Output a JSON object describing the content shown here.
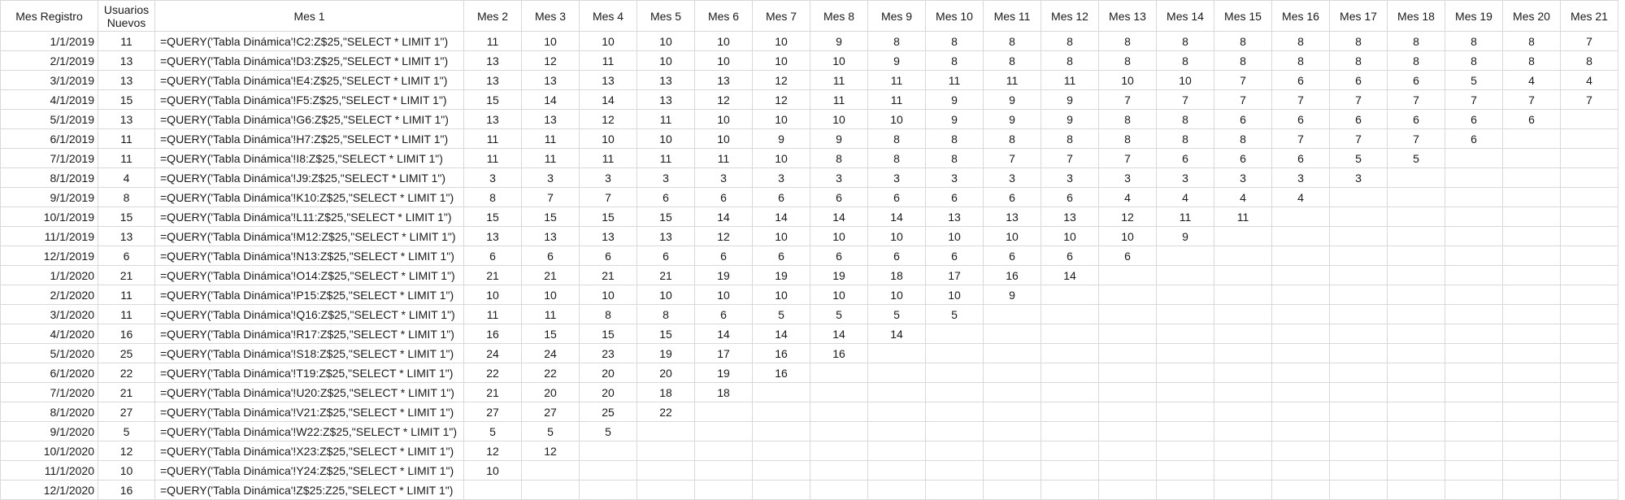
{
  "columns": [
    "Mes Registro",
    "Usuarios Nuevos",
    "Mes 1",
    "Mes 2",
    "Mes 3",
    "Mes 4",
    "Mes 5",
    "Mes 6",
    "Mes 7",
    "Mes 8",
    "Mes 9",
    "Mes 10",
    "Mes 11",
    "Mes 12",
    "Mes 13",
    "Mes 14",
    "Mes 15",
    "Mes 16",
    "Mes 17",
    "Mes 18",
    "Mes 19",
    "Mes 20",
    "Mes 21"
  ],
  "rows": [
    [
      "1/1/2019",
      "11",
      "=QUERY('Tabla Dinámica'!C2:Z$25,\"SELECT * LIMIT 1\")",
      "11",
      "10",
      "10",
      "10",
      "10",
      "10",
      "9",
      "8",
      "8",
      "8",
      "8",
      "8",
      "8",
      "8",
      "8",
      "8",
      "8",
      "8",
      "8",
      "7"
    ],
    [
      "2/1/2019",
      "13",
      "=QUERY('Tabla Dinámica'!D3:Z$25,\"SELECT * LIMIT 1\")",
      "13",
      "12",
      "11",
      "10",
      "10",
      "10",
      "10",
      "9",
      "8",
      "8",
      "8",
      "8",
      "8",
      "8",
      "8",
      "8",
      "8",
      "8",
      "8",
      "8"
    ],
    [
      "3/1/2019",
      "13",
      "=QUERY('Tabla Dinámica'!E4:Z$25,\"SELECT * LIMIT 1\")",
      "13",
      "13",
      "13",
      "13",
      "13",
      "12",
      "11",
      "11",
      "11",
      "11",
      "11",
      "10",
      "10",
      "7",
      "6",
      "6",
      "6",
      "5",
      "4",
      "4"
    ],
    [
      "4/1/2019",
      "15",
      "=QUERY('Tabla Dinámica'!F5:Z$25,\"SELECT * LIMIT 1\")",
      "15",
      "14",
      "14",
      "13",
      "12",
      "12",
      "11",
      "11",
      "9",
      "9",
      "9",
      "7",
      "7",
      "7",
      "7",
      "7",
      "7",
      "7",
      "7",
      "7"
    ],
    [
      "5/1/2019",
      "13",
      "=QUERY('Tabla Dinámica'!G6:Z$25,\"SELECT * LIMIT 1\")",
      "13",
      "13",
      "12",
      "11",
      "10",
      "10",
      "10",
      "10",
      "9",
      "9",
      "9",
      "8",
      "8",
      "6",
      "6",
      "6",
      "6",
      "6",
      "6",
      ""
    ],
    [
      "6/1/2019",
      "11",
      "=QUERY('Tabla Dinámica'!H7:Z$25,\"SELECT * LIMIT 1\")",
      "11",
      "11",
      "10",
      "10",
      "10",
      "9",
      "9",
      "8",
      "8",
      "8",
      "8",
      "8",
      "8",
      "8",
      "7",
      "7",
      "7",
      "6",
      "",
      ""
    ],
    [
      "7/1/2019",
      "11",
      "=QUERY('Tabla Dinámica'!I8:Z$25,\"SELECT * LIMIT 1\")",
      "11",
      "11",
      "11",
      "11",
      "11",
      "10",
      "8",
      "8",
      "8",
      "7",
      "7",
      "7",
      "6",
      "6",
      "6",
      "5",
      "5",
      "",
      "",
      ""
    ],
    [
      "8/1/2019",
      "4",
      "=QUERY('Tabla Dinámica'!J9:Z$25,\"SELECT * LIMIT 1\")",
      "3",
      "3",
      "3",
      "3",
      "3",
      "3",
      "3",
      "3",
      "3",
      "3",
      "3",
      "3",
      "3",
      "3",
      "3",
      "3",
      "",
      "",
      "",
      ""
    ],
    [
      "9/1/2019",
      "8",
      "=QUERY('Tabla Dinámica'!K10:Z$25,\"SELECT * LIMIT 1\")",
      "8",
      "7",
      "7",
      "6",
      "6",
      "6",
      "6",
      "6",
      "6",
      "6",
      "6",
      "4",
      "4",
      "4",
      "4",
      "",
      "",
      "",
      "",
      ""
    ],
    [
      "10/1/2019",
      "15",
      "=QUERY('Tabla Dinámica'!L11:Z$25,\"SELECT * LIMIT 1\")",
      "15",
      "15",
      "15",
      "15",
      "14",
      "14",
      "14",
      "14",
      "13",
      "13",
      "13",
      "12",
      "11",
      "11",
      "",
      "",
      "",
      "",
      "",
      ""
    ],
    [
      "11/1/2019",
      "13",
      "=QUERY('Tabla Dinámica'!M12:Z$25,\"SELECT * LIMIT 1\")",
      "13",
      "13",
      "13",
      "13",
      "12",
      "10",
      "10",
      "10",
      "10",
      "10",
      "10",
      "10",
      "9",
      "",
      "",
      "",
      "",
      "",
      "",
      ""
    ],
    [
      "12/1/2019",
      "6",
      "=QUERY('Tabla Dinámica'!N13:Z$25,\"SELECT * LIMIT 1\")",
      "6",
      "6",
      "6",
      "6",
      "6",
      "6",
      "6",
      "6",
      "6",
      "6",
      "6",
      "6",
      "",
      "",
      "",
      "",
      "",
      "",
      "",
      ""
    ],
    [
      "1/1/2020",
      "21",
      "=QUERY('Tabla Dinámica'!O14:Z$25,\"SELECT * LIMIT 1\")",
      "21",
      "21",
      "21",
      "21",
      "19",
      "19",
      "19",
      "18",
      "17",
      "16",
      "14",
      "",
      "",
      "",
      "",
      "",
      "",
      "",
      "",
      ""
    ],
    [
      "2/1/2020",
      "11",
      "=QUERY('Tabla Dinámica'!P15:Z$25,\"SELECT * LIMIT 1\")",
      "10",
      "10",
      "10",
      "10",
      "10",
      "10",
      "10",
      "10",
      "10",
      "9",
      "",
      "",
      "",
      "",
      "",
      "",
      "",
      "",
      "",
      ""
    ],
    [
      "3/1/2020",
      "11",
      "=QUERY('Tabla Dinámica'!Q16:Z$25,\"SELECT * LIMIT 1\")",
      "11",
      "11",
      "8",
      "8",
      "6",
      "5",
      "5",
      "5",
      "5",
      "",
      "",
      "",
      "",
      "",
      "",
      "",
      "",
      "",
      "",
      ""
    ],
    [
      "4/1/2020",
      "16",
      "=QUERY('Tabla Dinámica'!R17:Z$25,\"SELECT * LIMIT 1\")",
      "16",
      "15",
      "15",
      "15",
      "14",
      "14",
      "14",
      "14",
      "",
      "",
      "",
      "",
      "",
      "",
      "",
      "",
      "",
      "",
      "",
      ""
    ],
    [
      "5/1/2020",
      "25",
      "=QUERY('Tabla Dinámica'!S18:Z$25,\"SELECT * LIMIT 1\")",
      "24",
      "24",
      "23",
      "19",
      "17",
      "16",
      "16",
      "",
      "",
      "",
      "",
      "",
      "",
      "",
      "",
      "",
      "",
      "",
      "",
      ""
    ],
    [
      "6/1/2020",
      "22",
      "=QUERY('Tabla Dinámica'!T19:Z$25,\"SELECT * LIMIT 1\")",
      "22",
      "22",
      "20",
      "20",
      "19",
      "16",
      "",
      "",
      "",
      "",
      "",
      "",
      "",
      "",
      "",
      "",
      "",
      "",
      "",
      ""
    ],
    [
      "7/1/2020",
      "21",
      "=QUERY('Tabla Dinámica'!U20:Z$25,\"SELECT * LIMIT 1\")",
      "21",
      "20",
      "20",
      "18",
      "18",
      "",
      "",
      "",
      "",
      "",
      "",
      "",
      "",
      "",
      "",
      "",
      "",
      "",
      "",
      ""
    ],
    [
      "8/1/2020",
      "27",
      "=QUERY('Tabla Dinámica'!V21:Z$25,\"SELECT * LIMIT 1\")",
      "27",
      "27",
      "25",
      "22",
      "",
      "",
      "",
      "",
      "",
      "",
      "",
      "",
      "",
      "",
      "",
      "",
      "",
      "",
      "",
      ""
    ],
    [
      "9/1/2020",
      "5",
      "=QUERY('Tabla Dinámica'!W22:Z$25,\"SELECT * LIMIT 1\")",
      "5",
      "5",
      "5",
      "",
      "",
      "",
      "",
      "",
      "",
      "",
      "",
      "",
      "",
      "",
      "",
      "",
      "",
      "",
      "",
      ""
    ],
    [
      "10/1/2020",
      "12",
      "=QUERY('Tabla Dinámica'!X23:Z$25,\"SELECT * LIMIT 1\")",
      "12",
      "12",
      "",
      "",
      "",
      "",
      "",
      "",
      "",
      "",
      "",
      "",
      "",
      "",
      "",
      "",
      "",
      "",
      "",
      ""
    ],
    [
      "11/1/2020",
      "10",
      "=QUERY('Tabla Dinámica'!Y24:Z$25,\"SELECT * LIMIT 1\")",
      "10",
      "",
      "",
      "",
      "",
      "",
      "",
      "",
      "",
      "",
      "",
      "",
      "",
      "",
      "",
      "",
      "",
      "",
      "",
      ""
    ],
    [
      "12/1/2020",
      "16",
      "=QUERY('Tabla Dinámica'!Z$25:Z25,\"SELECT * LIMIT 1\")",
      "",
      "",
      "",
      "",
      "",
      "",
      "",
      "",
      "",
      "",
      "",
      "",
      "",
      "",
      "",
      "",
      "",
      "",
      "",
      ""
    ]
  ]
}
